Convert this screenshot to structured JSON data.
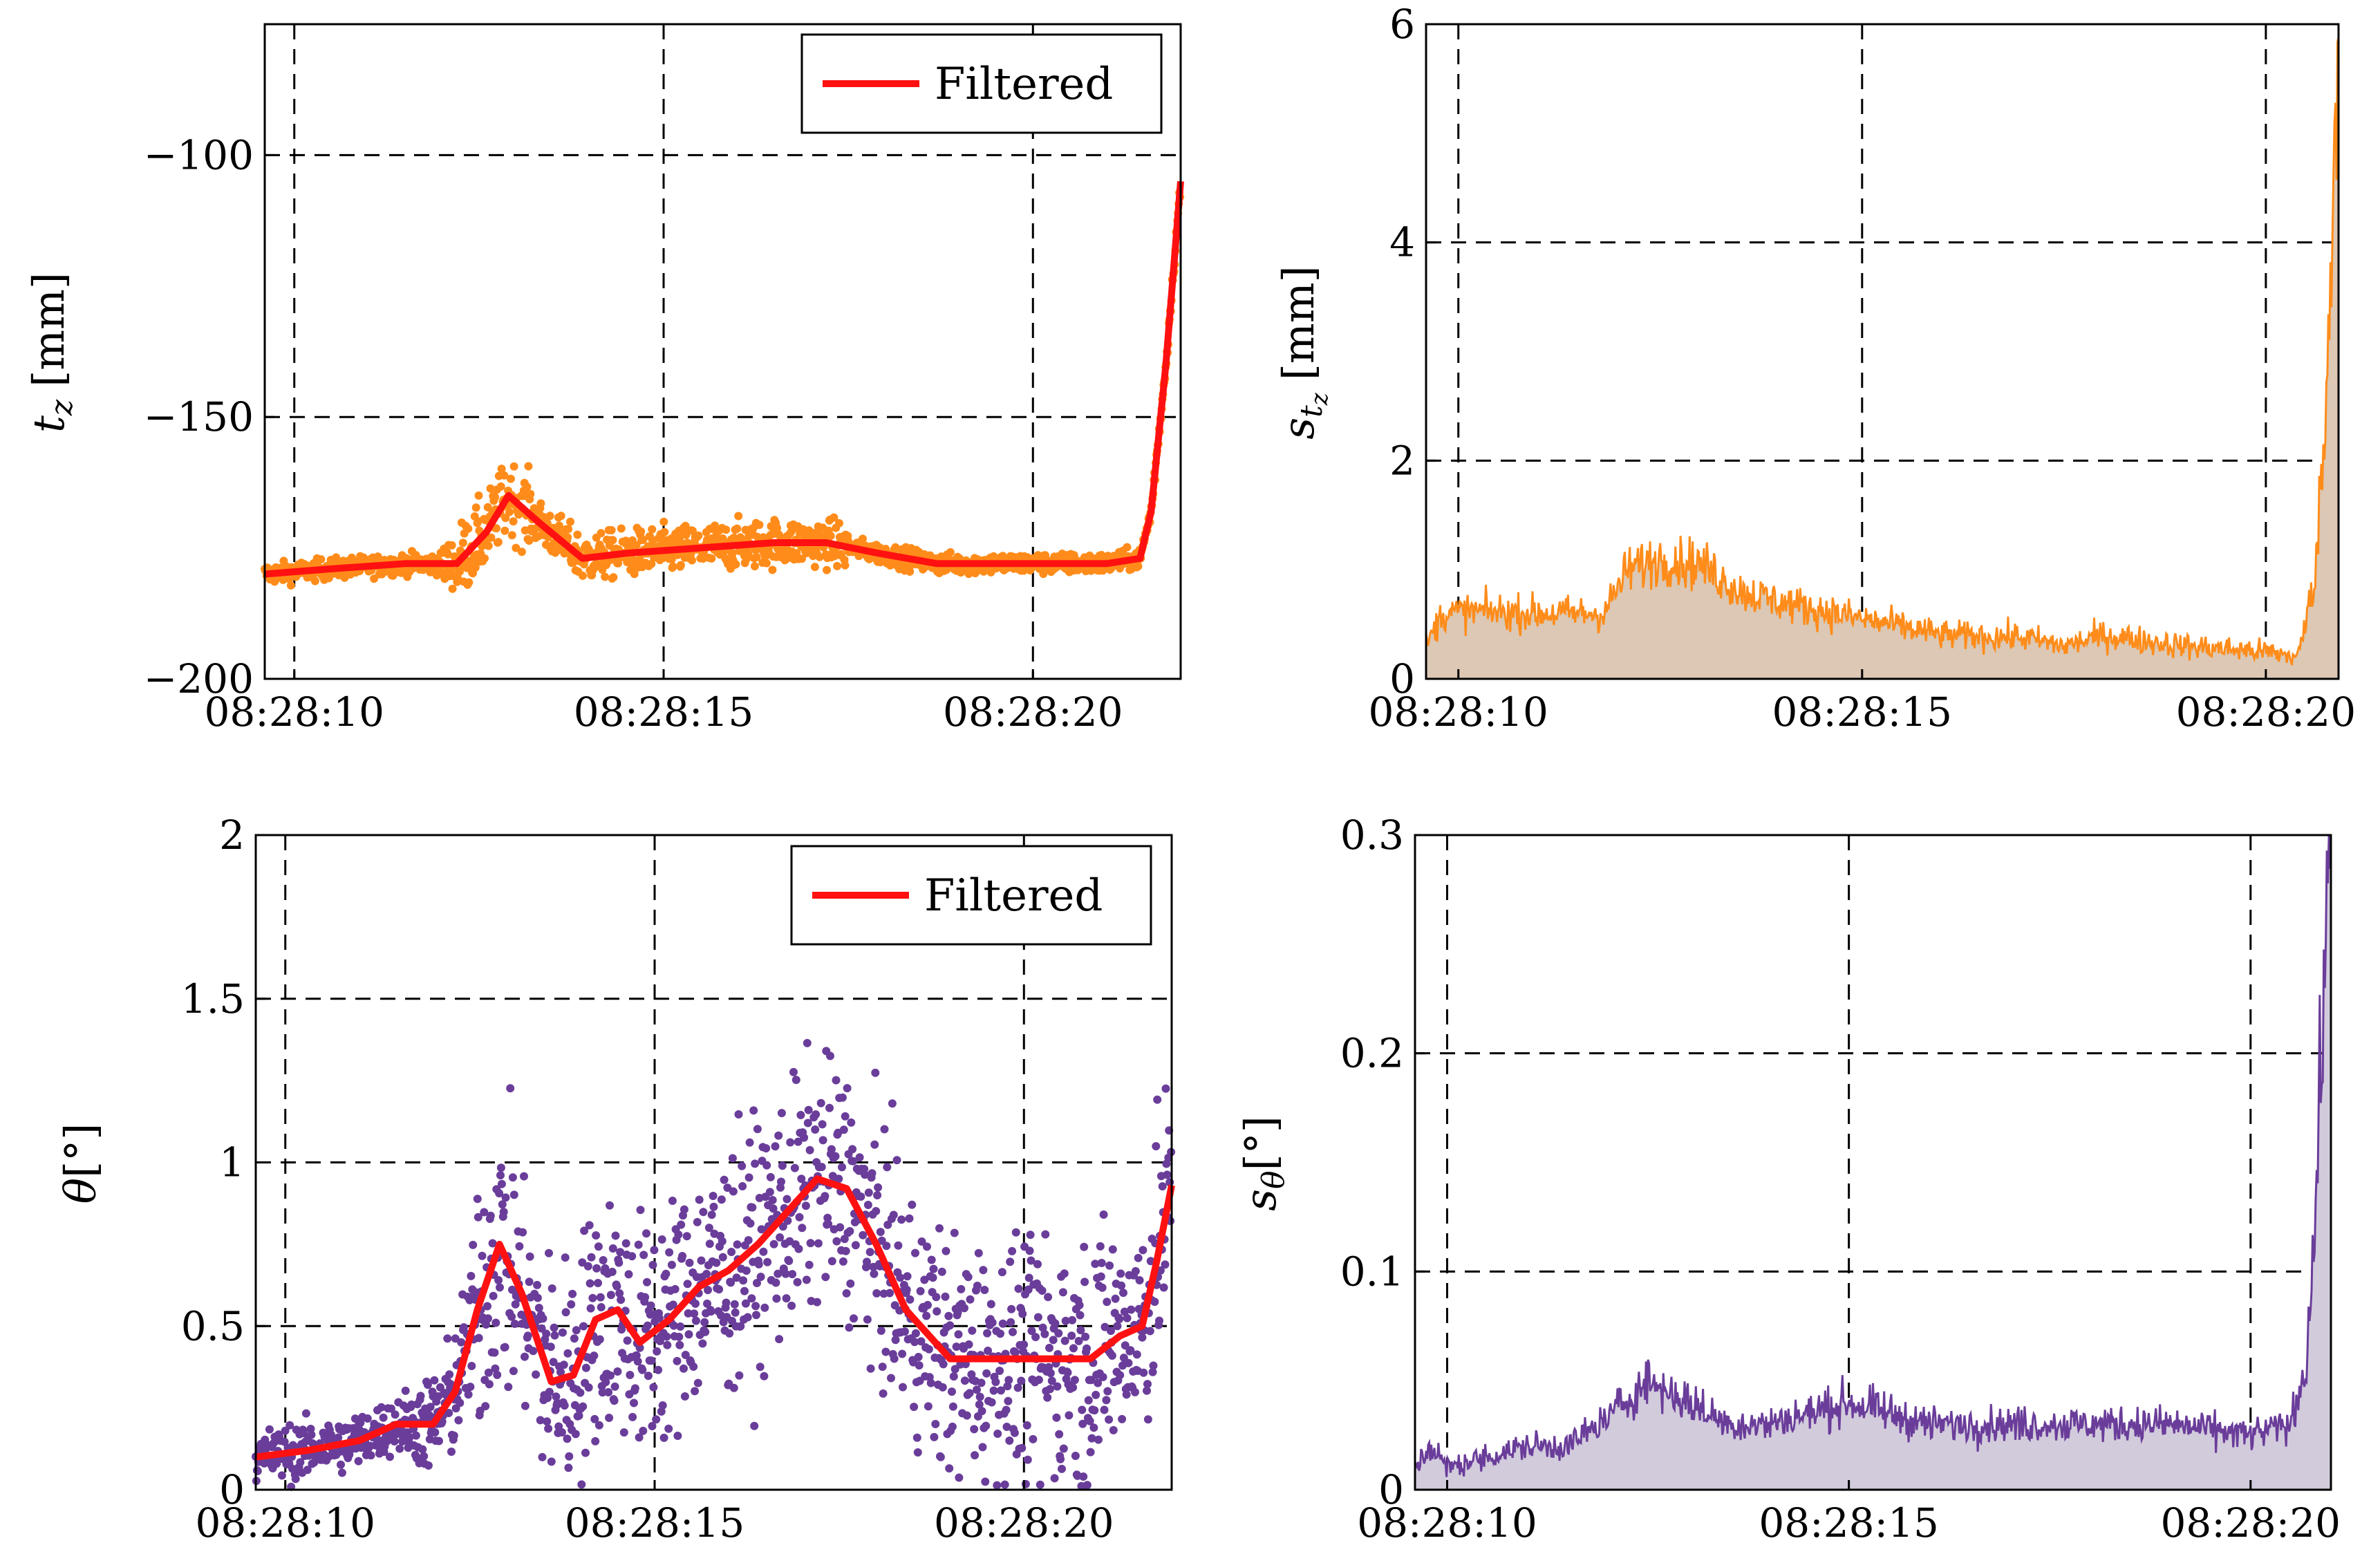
{
  "chart_data": [
    {
      "id": "tz",
      "type": "scatter",
      "ylabel": "t_z [mm]",
      "ylabel_main": "t",
      "ylabel_sub": "z",
      "ylabel_unit": "[mm]",
      "xlim": [
        9.6,
        22.0
      ],
      "ylim": [
        -200,
        -75
      ],
      "x_ticks": [
        10,
        15,
        20
      ],
      "x_tick_labels": [
        "08:28:10",
        "08:28:15",
        "08:28:20"
      ],
      "y_ticks": [
        -200,
        -150,
        -100
      ],
      "y_tick_labels": [
        "−200",
        "−150",
        "−100"
      ],
      "grid": "dashed",
      "legend": {
        "label": "Filtered",
        "position": "top-right"
      },
      "series": [
        {
          "name": "raw",
          "style": "points",
          "color": "#ff8c1a"
        },
        {
          "name": "Filtered",
          "style": "line",
          "color": "#ff1111",
          "x": [
            9.6,
            10.5,
            11.5,
            12.2,
            12.6,
            12.9,
            13.3,
            13.9,
            14.5,
            15.5,
            16.5,
            17.2,
            17.9,
            18.7,
            19.8,
            21.0,
            21.45,
            21.6,
            21.8,
            22.0
          ],
          "values": [
            -180,
            -179,
            -178,
            -178,
            -172,
            -165,
            -170,
            -177,
            -176,
            -175,
            -174,
            -174,
            -176,
            -178,
            -178,
            -178,
            -177,
            -168,
            -140,
            -105
          ]
        }
      ]
    },
    {
      "id": "s_tz",
      "type": "area",
      "ylabel": "s_tz [mm]",
      "ylabel_main": "s",
      "ylabel_sub": "t",
      "ylabel_subsub": "z",
      "ylabel_unit": "[mm]",
      "xlim": [
        9.6,
        20.9
      ],
      "ylim": [
        0,
        6
      ],
      "x_ticks": [
        10,
        15,
        20
      ],
      "x_tick_labels": [
        "08:28:10",
        "08:28:15",
        "08:28:20"
      ],
      "y_ticks": [
        0,
        2,
        4,
        6
      ],
      "y_tick_labels": [
        "0",
        "2",
        "4",
        "6"
      ],
      "grid": "dashed",
      "series": [
        {
          "name": "s_tz",
          "color": "#ff8c1a",
          "fill": "#dcc8b4",
          "x": [
            9.6,
            9.8,
            10.2,
            11.0,
            11.8,
            12.1,
            12.5,
            13.0,
            13.5,
            14.0,
            15.0,
            16.0,
            17.0,
            17.5,
            18.0,
            19.0,
            20.0,
            20.4,
            20.6,
            20.75,
            20.85,
            20.9
          ],
          "values": [
            0.3,
            0.6,
            0.62,
            0.6,
            0.6,
            1.0,
            1.1,
            1.05,
            0.8,
            0.7,
            0.55,
            0.4,
            0.38,
            0.3,
            0.4,
            0.3,
            0.25,
            0.2,
            0.9,
            2.5,
            5.0,
            5.9
          ]
        }
      ]
    },
    {
      "id": "theta",
      "type": "scatter",
      "ylabel": "θ[°]",
      "ylabel_main": "θ",
      "ylabel_unit": "[°]",
      "xlim": [
        9.6,
        22.0
      ],
      "ylim": [
        0,
        2
      ],
      "x_ticks": [
        10,
        15,
        20
      ],
      "x_tick_labels": [
        "08:28:10",
        "08:28:15",
        "08:28:20"
      ],
      "y_ticks": [
        0,
        0.5,
        1,
        1.5,
        2
      ],
      "y_tick_labels": [
        "0",
        "0.5",
        "1",
        "1.5",
        "2"
      ],
      "grid": "dashed",
      "legend": {
        "label": "Filtered",
        "position": "top-right"
      },
      "series": [
        {
          "name": "raw",
          "style": "points",
          "color": "#6a3d9a"
        },
        {
          "name": "Filtered",
          "style": "line",
          "color": "#ff1111",
          "x": [
            9.6,
            10.3,
            11.0,
            11.5,
            12.0,
            12.3,
            12.6,
            12.9,
            13.2,
            13.6,
            13.9,
            14.2,
            14.5,
            14.8,
            15.2,
            15.6,
            16.0,
            16.4,
            16.8,
            17.2,
            17.6,
            18.0,
            18.4,
            19.0,
            20.0,
            20.5,
            20.9,
            21.3,
            21.6,
            21.8,
            22.0
          ],
          "values": [
            0.1,
            0.12,
            0.15,
            0.2,
            0.2,
            0.3,
            0.55,
            0.75,
            0.6,
            0.33,
            0.35,
            0.52,
            0.55,
            0.45,
            0.52,
            0.62,
            0.67,
            0.75,
            0.85,
            0.95,
            0.92,
            0.75,
            0.55,
            0.4,
            0.4,
            0.4,
            0.4,
            0.47,
            0.5,
            0.7,
            0.93
          ]
        }
      ]
    },
    {
      "id": "s_theta",
      "type": "area",
      "ylabel": "s_θ[°]",
      "ylabel_main": "s",
      "ylabel_sub": "θ",
      "ylabel_unit": "[°]",
      "xlim": [
        9.6,
        21.0
      ],
      "ylim": [
        0,
        0.3
      ],
      "x_ticks": [
        10,
        15,
        20
      ],
      "x_tick_labels": [
        "08:28:10",
        "08:28:15",
        "08:28:20"
      ],
      "y_ticks": [
        0,
        0.1,
        0.2,
        0.3
      ],
      "y_tick_labels": [
        "0",
        "0.1",
        "0.2",
        "0.3"
      ],
      "grid": "dashed",
      "series": [
        {
          "name": "s_θ",
          "color": "#6a3d9a",
          "fill": "#d2cbdc",
          "x": [
            9.6,
            9.8,
            10.0,
            10.5,
            11.0,
            11.5,
            11.9,
            12.5,
            13.0,
            13.5,
            14.0,
            15.0,
            16.0,
            17.0,
            18.0,
            19.0,
            20.0,
            20.5,
            20.7,
            20.8,
            20.9,
            21.0
          ],
          "values": [
            0.01,
            0.02,
            0.01,
            0.015,
            0.02,
            0.02,
            0.03,
            0.05,
            0.04,
            0.03,
            0.03,
            0.04,
            0.03,
            0.03,
            0.03,
            0.03,
            0.025,
            0.03,
            0.06,
            0.12,
            0.22,
            0.3
          ]
        }
      ]
    }
  ]
}
